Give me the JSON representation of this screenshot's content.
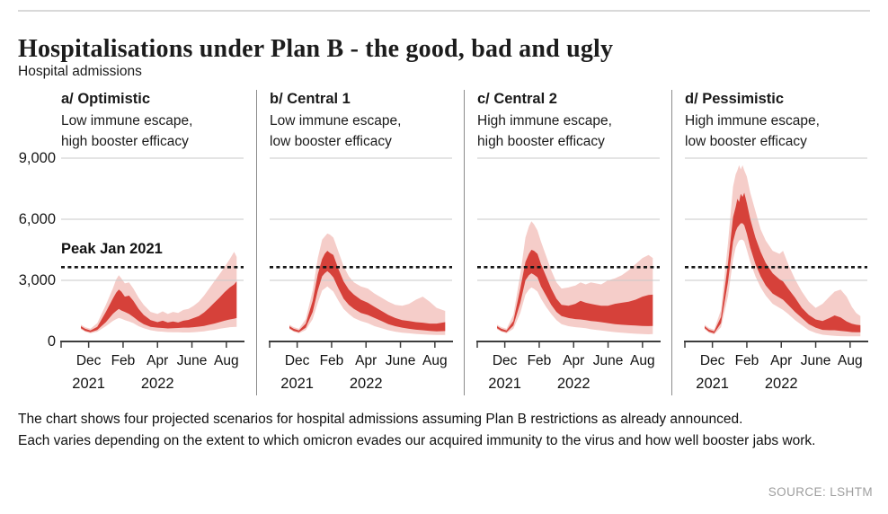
{
  "header": {
    "title": "Hospitalisations under Plan B - the good, bad and ugly",
    "y_axis_title": "Hospital admissions"
  },
  "footer": {
    "line1": "The chart shows four projected scenarios for hospital admissions assuming Plan B restrictions as already announced.",
    "line2": "Each varies depending on the extent to which omicron evades our acquired immunity to the virus and how well booster jabs work.",
    "source": "SOURCE: LSHTM"
  },
  "colors": {
    "band_inner": "#d6413a",
    "band_outer": "#f5cdc9",
    "grid": "#c9c9c9",
    "axis": "#3d3d3d",
    "dotted": "#161616",
    "divider": "#8c8c8c",
    "source_text": "#9e9e9e"
  },
  "chart_data": {
    "type": "area",
    "title": "Hospitalisations under Plan B - the good, bad and ugly",
    "ylabel": "Hospital admissions",
    "ylim": [
      0,
      9706
    ],
    "x_domain": [
      -0.6,
      10.0
    ],
    "yticks": [
      {
        "v": 0,
        "label": "0"
      },
      {
        "v": 3000,
        "label": "3,000"
      },
      {
        "v": 6000,
        "label": "6,000"
      },
      {
        "v": 9000,
        "label": "9,000"
      }
    ],
    "xticks": [
      {
        "t": -0.6,
        "label": ""
      },
      {
        "t": 1,
        "label": "Dec"
      },
      {
        "t": 3,
        "label": "Feb"
      },
      {
        "t": 5,
        "label": "Apr"
      },
      {
        "t": 7,
        "label": "June"
      },
      {
        "t": 9,
        "label": "Aug"
      }
    ],
    "year_labels": [
      {
        "t": 1,
        "label": "2021"
      },
      {
        "t": 5,
        "label": "2022"
      }
    ],
    "reference_line": {
      "label": "Peak Jan 2021",
      "value": 3650
    },
    "point_format": [
      "month_index_dec2021_is_1",
      "outer_low",
      "inner_low",
      "inner_high",
      "outer_high"
    ],
    "panels": [
      {
        "id": "a",
        "label": "a/ Optimistic",
        "desc1": "Low immune escape,",
        "desc2": "high booster efficacy",
        "points": [
          [
            0.55,
            600,
            650,
            750,
            820
          ],
          [
            0.8,
            480,
            520,
            620,
            700
          ],
          [
            1.1,
            400,
            450,
            540,
            620
          ],
          [
            1.5,
            480,
            560,
            720,
            900
          ],
          [
            2.0,
            750,
            950,
            1450,
            1800
          ],
          [
            2.4,
            1000,
            1350,
            2100,
            2600
          ],
          [
            2.6,
            1100,
            1500,
            2400,
            3050
          ],
          [
            2.75,
            1150,
            1600,
            2550,
            3250
          ],
          [
            2.9,
            1120,
            1520,
            2450,
            3100
          ],
          [
            3.1,
            1050,
            1450,
            2200,
            2850
          ],
          [
            3.35,
            980,
            1350,
            2250,
            2900
          ],
          [
            3.6,
            900,
            1200,
            2000,
            2600
          ],
          [
            3.9,
            750,
            1000,
            1600,
            2150
          ],
          [
            4.2,
            650,
            850,
            1300,
            1800
          ],
          [
            4.6,
            550,
            720,
            1050,
            1450
          ],
          [
            5.0,
            500,
            680,
            950,
            1350
          ],
          [
            5.3,
            480,
            660,
            1020,
            1480
          ],
          [
            5.6,
            460,
            640,
            930,
            1350
          ],
          [
            5.9,
            450,
            650,
            980,
            1450
          ],
          [
            6.2,
            450,
            660,
            930,
            1400
          ],
          [
            6.5,
            440,
            680,
            1020,
            1550
          ],
          [
            6.8,
            440,
            680,
            1060,
            1600
          ],
          [
            7.1,
            450,
            700,
            1150,
            1750
          ],
          [
            7.4,
            470,
            730,
            1250,
            1950
          ],
          [
            7.7,
            500,
            760,
            1420,
            2250
          ],
          [
            8.0,
            540,
            820,
            1650,
            2600
          ],
          [
            8.3,
            570,
            880,
            1900,
            2950
          ],
          [
            8.6,
            620,
            950,
            2150,
            3300
          ],
          [
            8.9,
            660,
            1020,
            2420,
            3650
          ],
          [
            9.2,
            700,
            1080,
            2650,
            4050
          ],
          [
            9.45,
            710,
            1120,
            2800,
            4400
          ],
          [
            9.6,
            720,
            1150,
            2950,
            4150
          ]
        ]
      },
      {
        "id": "b",
        "label": "b/ Central 1",
        "desc1": "Low immune escape,",
        "desc2": "low booster efficacy",
        "points": [
          [
            0.55,
            600,
            650,
            750,
            820
          ],
          [
            0.8,
            480,
            520,
            620,
            700
          ],
          [
            1.1,
            400,
            450,
            540,
            620
          ],
          [
            1.5,
            560,
            680,
            880,
            1100
          ],
          [
            1.9,
            1100,
            1450,
            2000,
            2500
          ],
          [
            2.2,
            1900,
            2500,
            3300,
            4100
          ],
          [
            2.45,
            2500,
            3200,
            4050,
            5000
          ],
          [
            2.6,
            2600,
            3350,
            4300,
            5150
          ],
          [
            2.75,
            2700,
            3450,
            4450,
            5300
          ],
          [
            2.9,
            2600,
            3350,
            4350,
            5250
          ],
          [
            3.1,
            2450,
            3150,
            4250,
            5100
          ],
          [
            3.4,
            2000,
            2600,
            3550,
            4400
          ],
          [
            3.7,
            1600,
            2100,
            2950,
            3700
          ],
          [
            4.0,
            1350,
            1800,
            2550,
            3200
          ],
          [
            4.3,
            1150,
            1600,
            2300,
            2900
          ],
          [
            4.7,
            1000,
            1400,
            2050,
            2700
          ],
          [
            5.1,
            900,
            1300,
            1900,
            2600
          ],
          [
            5.5,
            750,
            1150,
            1700,
            2350
          ],
          [
            5.9,
            650,
            1000,
            1500,
            2150
          ],
          [
            6.3,
            550,
            850,
            1300,
            1950
          ],
          [
            6.7,
            480,
            750,
            1150,
            1800
          ],
          [
            7.1,
            430,
            680,
            1050,
            1750
          ],
          [
            7.5,
            400,
            620,
            1000,
            1850
          ],
          [
            7.9,
            370,
            580,
            950,
            2050
          ],
          [
            8.3,
            350,
            550,
            920,
            2200
          ],
          [
            8.7,
            330,
            520,
            880,
            1950
          ],
          [
            9.1,
            320,
            500,
            880,
            1650
          ],
          [
            9.6,
            320,
            510,
            950,
            1500
          ]
        ]
      },
      {
        "id": "c",
        "label": "c/ Central 2",
        "desc1": "High immune escape,",
        "desc2": "high booster efficacy",
        "points": [
          [
            0.55,
            600,
            650,
            750,
            820
          ],
          [
            0.8,
            480,
            520,
            620,
            700
          ],
          [
            1.1,
            400,
            450,
            540,
            620
          ],
          [
            1.5,
            620,
            780,
            1000,
            1300
          ],
          [
            1.9,
            1400,
            1900,
            2600,
            3300
          ],
          [
            2.2,
            2300,
            3000,
            3900,
            5100
          ],
          [
            2.4,
            2550,
            3250,
            4300,
            5650
          ],
          [
            2.55,
            2650,
            3350,
            4500,
            5900
          ],
          [
            2.7,
            2580,
            3280,
            4450,
            5750
          ],
          [
            2.9,
            2450,
            3150,
            4300,
            5450
          ],
          [
            3.1,
            2100,
            2700,
            3800,
            4900
          ],
          [
            3.4,
            1700,
            2250,
            3200,
            4200
          ],
          [
            3.7,
            1350,
            1800,
            2600,
            3500
          ],
          [
            4.0,
            1050,
            1450,
            2100,
            2900
          ],
          [
            4.3,
            850,
            1250,
            1800,
            2600
          ],
          [
            4.7,
            750,
            1150,
            1750,
            2650
          ],
          [
            5.1,
            700,
            1100,
            1850,
            2750
          ],
          [
            5.4,
            680,
            1080,
            2000,
            2900
          ],
          [
            5.7,
            650,
            1050,
            1900,
            2800
          ],
          [
            6.0,
            600,
            1000,
            1850,
            2900
          ],
          [
            6.3,
            570,
            980,
            1800,
            2850
          ],
          [
            6.6,
            540,
            950,
            1750,
            2800
          ],
          [
            7.0,
            500,
            900,
            1750,
            3000
          ],
          [
            7.4,
            460,
            850,
            1850,
            3100
          ],
          [
            7.8,
            430,
            820,
            1900,
            3250
          ],
          [
            8.2,
            400,
            800,
            1950,
            3500
          ],
          [
            8.6,
            380,
            780,
            2050,
            3800
          ],
          [
            9.0,
            360,
            760,
            2200,
            4100
          ],
          [
            9.35,
            355,
            755,
            2280,
            4250
          ],
          [
            9.6,
            360,
            760,
            2300,
            4100
          ]
        ]
      },
      {
        "id": "d",
        "label": "d/ Pessimistic",
        "desc1": "High immune escape,",
        "desc2": "low booster efficacy",
        "points": [
          [
            0.55,
            600,
            650,
            750,
            820
          ],
          [
            0.8,
            430,
            480,
            580,
            660
          ],
          [
            1.1,
            350,
            400,
            500,
            580
          ],
          [
            1.5,
            700,
            900,
            1200,
            1550
          ],
          [
            1.9,
            2200,
            2900,
            3800,
            4800
          ],
          [
            2.2,
            4000,
            4900,
            6100,
            7600
          ],
          [
            2.35,
            4600,
            5400,
            6600,
            8200
          ],
          [
            2.45,
            4800,
            5600,
            7000,
            8400
          ],
          [
            2.55,
            4950,
            5700,
            6850,
            8650
          ],
          [
            2.65,
            5000,
            5800,
            7250,
            8450
          ],
          [
            2.75,
            5000,
            5800,
            7100,
            8650
          ],
          [
            2.85,
            4900,
            5700,
            7300,
            8400
          ],
          [
            3.0,
            4500,
            5300,
            6800,
            8100
          ],
          [
            3.2,
            3900,
            4600,
            6000,
            7300
          ],
          [
            3.5,
            3200,
            3800,
            5100,
            6400
          ],
          [
            3.8,
            2650,
            3200,
            4400,
            5500
          ],
          [
            4.1,
            2250,
            2750,
            3850,
            4950
          ],
          [
            4.5,
            1850,
            2350,
            3350,
            4450
          ],
          [
            4.9,
            1650,
            2150,
            3050,
            4300
          ],
          [
            5.1,
            1550,
            2050,
            2950,
            4450
          ],
          [
            5.4,
            1350,
            1800,
            2600,
            3800
          ],
          [
            5.8,
            1050,
            1450,
            2150,
            3050
          ],
          [
            6.2,
            800,
            1150,
            1650,
            2450
          ],
          [
            6.6,
            550,
            850,
            1300,
            1950
          ],
          [
            7.0,
            420,
            680,
            1080,
            1650
          ],
          [
            7.4,
            330,
            570,
            1000,
            1850
          ],
          [
            7.8,
            300,
            550,
            1150,
            2200
          ],
          [
            8.1,
            280,
            550,
            1280,
            2450
          ],
          [
            8.45,
            260,
            520,
            1180,
            2550
          ],
          [
            8.8,
            250,
            490,
            980,
            2200
          ],
          [
            9.1,
            250,
            460,
            870,
            1700
          ],
          [
            9.35,
            250,
            455,
            820,
            1400
          ],
          [
            9.6,
            250,
            450,
            800,
            1250
          ]
        ]
      }
    ]
  }
}
